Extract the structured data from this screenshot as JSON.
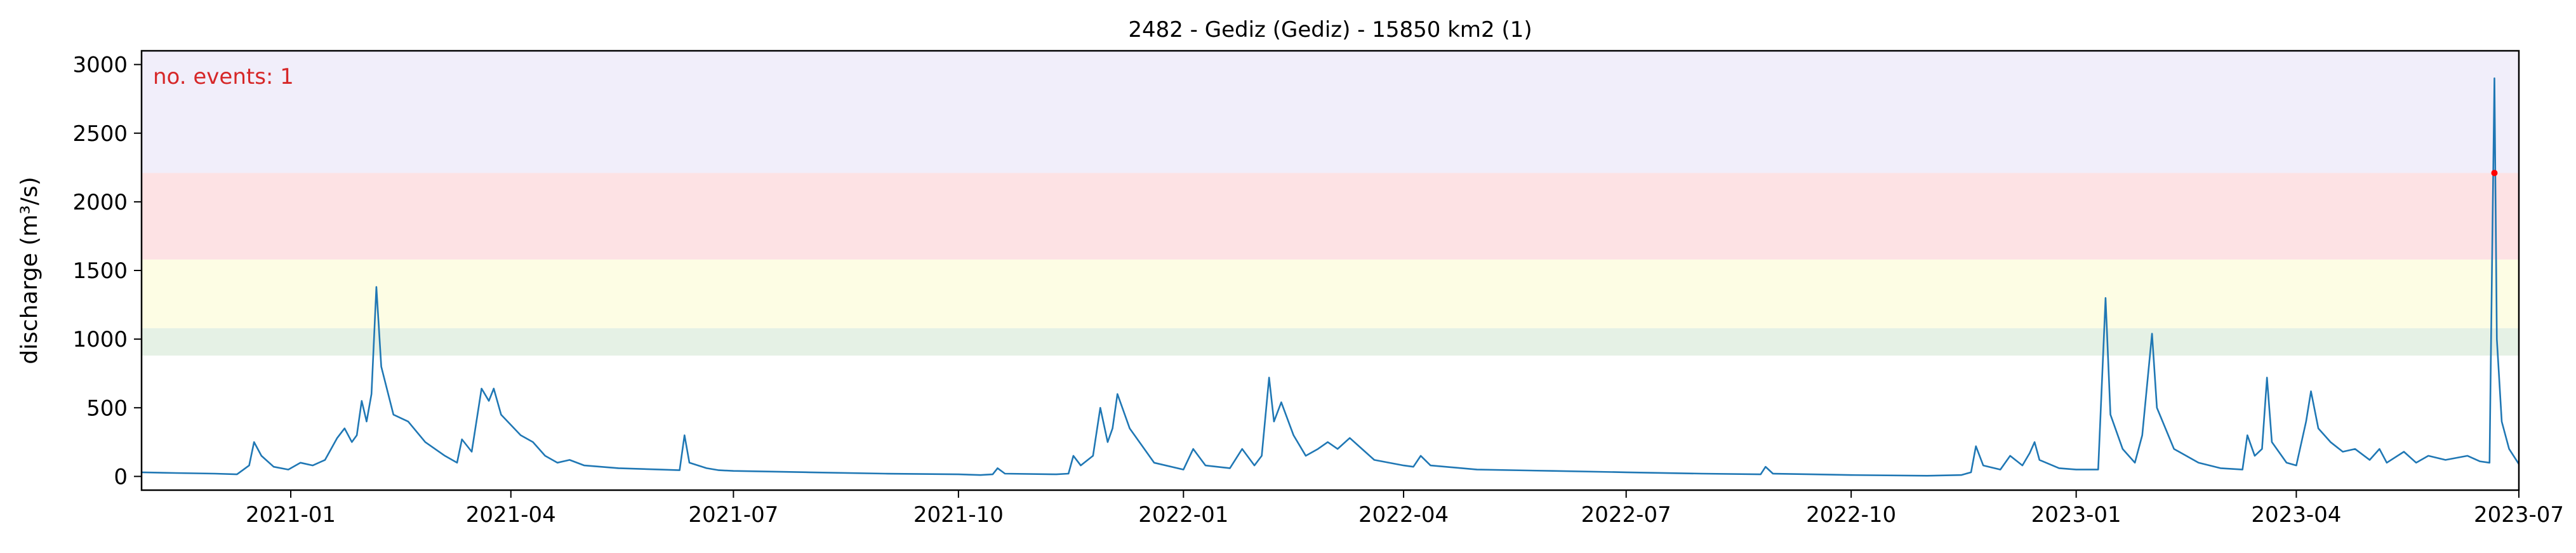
{
  "chart_data": {
    "type": "line",
    "title": "2482 - Gediz (Gediz) - 15850 km2 (1)",
    "xlabel": "",
    "ylabel": "discharge (m³/s)",
    "xlim": [
      "2020-11-01",
      "2023-07-01"
    ],
    "ylim": [
      -100,
      3100
    ],
    "x_ticks": [
      "2021-01",
      "2021-04",
      "2021-07",
      "2021-10",
      "2022-01",
      "2022-04",
      "2022-07",
      "2022-10",
      "2023-01",
      "2023-04",
      "2023-07"
    ],
    "y_ticks": [
      0,
      500,
      1000,
      1500,
      2000,
      2500,
      3000
    ],
    "grid": false,
    "bands": [
      {
        "from": 880,
        "to": 1080,
        "color": "#e5f1e5"
      },
      {
        "from": 1080,
        "to": 1580,
        "color": "#fdfde4"
      },
      {
        "from": 1580,
        "to": 2210,
        "color": "#fde2e4"
      },
      {
        "from": 2210,
        "to": 3100,
        "color": "#f1eefa"
      }
    ],
    "series": [
      {
        "color": "#1f77b4",
        "points": [
          [
            "2020-11-01",
            30
          ],
          [
            "2020-11-15",
            25
          ],
          [
            "2020-12-01",
            20
          ],
          [
            "2020-12-10",
            15
          ],
          [
            "2020-12-15",
            80
          ],
          [
            "2020-12-17",
            250
          ],
          [
            "2020-12-20",
            150
          ],
          [
            "2020-12-25",
            70
          ],
          [
            "2020-12-31",
            50
          ],
          [
            "2021-01-05",
            100
          ],
          [
            "2021-01-10",
            80
          ],
          [
            "2021-01-15",
            120
          ],
          [
            "2021-01-20",
            280
          ],
          [
            "2021-01-23",
            350
          ],
          [
            "2021-01-26",
            250
          ],
          [
            "2021-01-28",
            300
          ],
          [
            "2021-01-30",
            550
          ],
          [
            "2021-02-01",
            400
          ],
          [
            "2021-02-03",
            600
          ],
          [
            "2021-02-05",
            1380
          ],
          [
            "2021-02-07",
            800
          ],
          [
            "2021-02-12",
            450
          ],
          [
            "2021-02-18",
            400
          ],
          [
            "2021-02-25",
            250
          ],
          [
            "2021-03-05",
            150
          ],
          [
            "2021-03-10",
            100
          ],
          [
            "2021-03-12",
            270
          ],
          [
            "2021-03-16",
            180
          ],
          [
            "2021-03-20",
            640
          ],
          [
            "2021-03-23",
            550
          ],
          [
            "2021-03-25",
            640
          ],
          [
            "2021-03-28",
            450
          ],
          [
            "2021-04-05",
            300
          ],
          [
            "2021-04-10",
            250
          ],
          [
            "2021-04-15",
            150
          ],
          [
            "2021-04-20",
            100
          ],
          [
            "2021-04-25",
            120
          ],
          [
            "2021-05-01",
            80
          ],
          [
            "2021-05-15",
            60
          ],
          [
            "2021-06-01",
            50
          ],
          [
            "2021-06-09",
            45
          ],
          [
            "2021-06-11",
            300
          ],
          [
            "2021-06-13",
            100
          ],
          [
            "2021-06-20",
            60
          ],
          [
            "2021-06-25",
            45
          ],
          [
            "2021-07-01",
            40
          ],
          [
            "2021-08-01",
            30
          ],
          [
            "2021-09-01",
            20
          ],
          [
            "2021-10-01",
            15
          ],
          [
            "2021-10-10",
            10
          ],
          [
            "2021-10-15",
            15
          ],
          [
            "2021-10-17",
            60
          ],
          [
            "2021-10-20",
            20
          ],
          [
            "2021-11-10",
            15
          ],
          [
            "2021-11-15",
            20
          ],
          [
            "2021-11-17",
            150
          ],
          [
            "2021-11-20",
            80
          ],
          [
            "2021-11-25",
            150
          ],
          [
            "2021-11-28",
            500
          ],
          [
            "2021-12-01",
            250
          ],
          [
            "2021-12-03",
            350
          ],
          [
            "2021-12-05",
            600
          ],
          [
            "2021-12-10",
            350
          ],
          [
            "2021-12-20",
            100
          ],
          [
            "2022-01-01",
            50
          ],
          [
            "2022-01-05",
            200
          ],
          [
            "2022-01-10",
            80
          ],
          [
            "2022-01-20",
            60
          ],
          [
            "2022-01-25",
            200
          ],
          [
            "2022-01-30",
            80
          ],
          [
            "2022-02-02",
            150
          ],
          [
            "2022-02-05",
            720
          ],
          [
            "2022-02-07",
            400
          ],
          [
            "2022-02-10",
            540
          ],
          [
            "2022-02-15",
            300
          ],
          [
            "2022-02-20",
            150
          ],
          [
            "2022-02-25",
            200
          ],
          [
            "2022-03-01",
            250
          ],
          [
            "2022-03-05",
            200
          ],
          [
            "2022-03-10",
            280
          ],
          [
            "2022-03-15",
            200
          ],
          [
            "2022-03-20",
            120
          ],
          [
            "2022-04-01",
            80
          ],
          [
            "2022-04-05",
            70
          ],
          [
            "2022-04-08",
            150
          ],
          [
            "2022-04-12",
            80
          ],
          [
            "2022-05-01",
            50
          ],
          [
            "2022-06-01",
            40
          ],
          [
            "2022-07-01",
            30
          ],
          [
            "2022-08-01",
            20
          ],
          [
            "2022-08-25",
            15
          ],
          [
            "2022-08-27",
            70
          ],
          [
            "2022-08-30",
            20
          ],
          [
            "2022-09-15",
            15
          ],
          [
            "2022-10-01",
            10
          ],
          [
            "2022-11-01",
            5
          ],
          [
            "2022-11-15",
            10
          ],
          [
            "2022-11-19",
            30
          ],
          [
            "2022-11-21",
            220
          ],
          [
            "2022-11-24",
            80
          ],
          [
            "2022-12-01",
            50
          ],
          [
            "2022-12-05",
            150
          ],
          [
            "2022-12-10",
            80
          ],
          [
            "2022-12-13",
            170
          ],
          [
            "2022-12-15",
            250
          ],
          [
            "2022-12-17",
            120
          ],
          [
            "2022-12-25",
            60
          ],
          [
            "2023-01-01",
            50
          ],
          [
            "2023-01-10",
            50
          ],
          [
            "2023-01-13",
            1300
          ],
          [
            "2023-01-15",
            450
          ],
          [
            "2023-01-20",
            200
          ],
          [
            "2023-01-25",
            100
          ],
          [
            "2023-01-28",
            300
          ],
          [
            "2023-02-01",
            1040
          ],
          [
            "2023-02-03",
            500
          ],
          [
            "2023-02-10",
            200
          ],
          [
            "2023-02-20",
            100
          ],
          [
            "2023-03-01",
            60
          ],
          [
            "2023-03-10",
            50
          ],
          [
            "2023-03-12",
            300
          ],
          [
            "2023-03-15",
            150
          ],
          [
            "2023-03-18",
            200
          ],
          [
            "2023-03-20",
            720
          ],
          [
            "2023-03-22",
            250
          ],
          [
            "2023-03-28",
            100
          ],
          [
            "2023-04-01",
            80
          ],
          [
            "2023-04-05",
            400
          ],
          [
            "2023-04-07",
            620
          ],
          [
            "2023-04-10",
            350
          ],
          [
            "2023-04-15",
            250
          ],
          [
            "2023-04-20",
            180
          ],
          [
            "2023-04-25",
            200
          ],
          [
            "2023-05-01",
            120
          ],
          [
            "2023-05-05",
            200
          ],
          [
            "2023-05-08",
            100
          ],
          [
            "2023-05-15",
            180
          ],
          [
            "2023-05-20",
            100
          ],
          [
            "2023-05-25",
            150
          ],
          [
            "2023-06-01",
            120
          ],
          [
            "2023-06-10",
            150
          ],
          [
            "2023-06-15",
            110
          ],
          [
            "2023-06-19",
            100
          ],
          [
            "2023-06-20",
            1500
          ],
          [
            "2023-06-21",
            2900
          ],
          [
            "2023-06-22",
            1000
          ],
          [
            "2023-06-24",
            400
          ],
          [
            "2023-06-27",
            200
          ],
          [
            "2023-07-01",
            90
          ]
        ]
      }
    ],
    "event_marker": {
      "x": "2023-06-21",
      "y": 2210,
      "color": "#ff0000"
    },
    "annotation": {
      "text": "no. events: 1",
      "color": "#d62728",
      "position": "top-left"
    }
  }
}
